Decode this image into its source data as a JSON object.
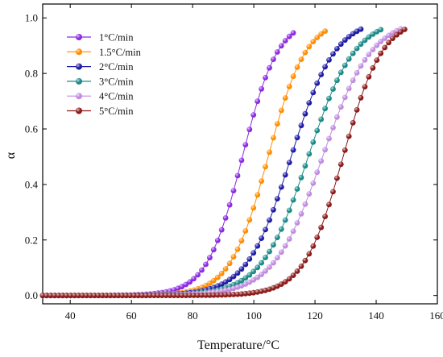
{
  "chart_data": {
    "type": "scatter",
    "xlabel": "Temperature/°C",
    "ylabel": "α",
    "xlim": [
      31,
      160
    ],
    "ylim": [
      -0.03,
      1.05
    ],
    "xticks": [
      "40",
      "60",
      "80",
      "100",
      "120",
      "140",
      "160"
    ],
    "yticks": [
      "0.0",
      "0.2",
      "0.4",
      "0.6",
      "0.8",
      "1.0"
    ],
    "legend_position": "top-left",
    "grid": false,
    "series": [
      {
        "name": "1°C/min",
        "color": "#8b2be2",
        "x_start": 31,
        "x_end": 114,
        "step": 1.3,
        "midpoint": 96.3,
        "width": 5.8
      },
      {
        "name": "1.5°C/min",
        "color": "#ff8c00",
        "x_start": 31,
        "x_end": 124,
        "step": 1.3,
        "midpoint": 104.7,
        "width": 6.2
      },
      {
        "name": "2°C/min",
        "color": "#1e1ba5",
        "x_start": 31,
        "x_end": 135,
        "step": 1.3,
        "midpoint": 112.2,
        "width": 7.2
      },
      {
        "name": "3°C/min",
        "color": "#1a8a86",
        "x_start": 31,
        "x_end": 142,
        "step": 1.3,
        "midpoint": 117.8,
        "width": 7.6
      },
      {
        "name": "4°C/min",
        "color": "#c08be0",
        "x_start": 31,
        "x_end": 148,
        "step": 1.3,
        "midpoint": 122.5,
        "width": 8.0
      },
      {
        "name": "5°C/min",
        "color": "#8b1a1a",
        "x_start": 31,
        "x_end": 150,
        "step": 1.3,
        "midpoint": 129.2,
        "width": 6.4
      }
    ]
  }
}
